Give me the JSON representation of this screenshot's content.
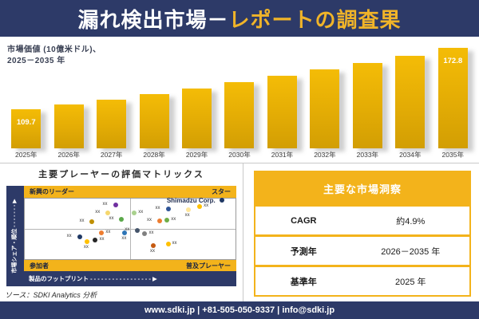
{
  "header": {
    "title_white": "漏れ検出市場－",
    "title_yellow": "レポートの調査果"
  },
  "bar_section": {
    "subtitle_line1": "市場価値 (10億米ドル)、",
    "subtitle_line2": "2025－2035 年"
  },
  "matrix_section": {
    "title": "主要プレーヤーの評価マトリックス",
    "quadrant_top_left": "新興のリーダー",
    "quadrant_top_right": "スター",
    "quadrant_bottom_left": "参加者",
    "quadrant_bottom_right": "普及プレーヤー",
    "y_axis_label": "市場シェア・順位",
    "x_axis_label": "製品のフットプリント",
    "featured_company": "Shimadzu Corp."
  },
  "insights": {
    "title": "主要な市場洞察",
    "rows": [
      {
        "label": "CAGR",
        "value": "約4.9%"
      },
      {
        "label": "予測年",
        "value": "2026－2035 年"
      },
      {
        "label": "基準年",
        "value": "2025 年"
      }
    ]
  },
  "source_note": "ソース：SDKI Analytics 分析",
  "footer": {
    "text": "www.sdki.jp | +81-505-050-9337 | info@sdki.jp"
  },
  "colors": {
    "navy": "#2d3a68",
    "gold_band": "#f3b31b",
    "title_yellow": "#f0b429",
    "bar_gold_top": "#f4bc06",
    "bar_gold_bottom": "#d29e04"
  },
  "chart_data": [
    {
      "type": "bar",
      "title": "市場価値 (10億米ドル)、2025－2035 年",
      "categories": [
        "2025年",
        "2026年",
        "2027年",
        "2028年",
        "2029年",
        "2030年",
        "2031年",
        "2032年",
        "2033年",
        "2034年",
        "2035年"
      ],
      "values": [
        109.7,
        114.8,
        120.1,
        125.7,
        131.5,
        137.6,
        144.0,
        150.7,
        157.7,
        165.0,
        172.8
      ],
      "value_labels": {
        "0": "109.7",
        "10": "172.8"
      },
      "xlabel": "",
      "ylabel": "市場価値 (10億米ドル)",
      "ylim": [
        70,
        180
      ],
      "grid": false,
      "legend": "none",
      "note": "only first and last bars carry data labels; intermediate values estimated from bar heights (~4.65% CAGR)"
    },
    {
      "type": "scatter",
      "title": "主要プレーヤーの評価マトリックス",
      "xlabel": "製品のフットプリント",
      "ylabel": "市場シェア・順位",
      "quadrants": [
        "新興のリーダー",
        "スター",
        "参加者",
        "普及プレーヤー"
      ],
      "points": [
        {
          "x": 43,
          "y": 10,
          "color": "#7030a0",
          "label": "xx",
          "side": "left"
        },
        {
          "x": 39.5,
          "y": 24,
          "color": "#f5d76e",
          "label": "xx",
          "side": "left"
        },
        {
          "x": 32,
          "y": 38.5,
          "color": "#bf8f00",
          "label": "xx",
          "side": "left"
        },
        {
          "x": 46,
          "y": 34.5,
          "color": "#5ba84a",
          "label": "xx",
          "side": "left"
        },
        {
          "x": 52,
          "y": 24,
          "color": "#a9d18e",
          "label": "xx",
          "side": "right"
        },
        {
          "x": 68,
          "y": 16.5,
          "color": "#2f5597",
          "label": "xx",
          "side": "left"
        },
        {
          "x": 77.5,
          "y": 18,
          "color": "#ffe699",
          "label": "xx",
          "side": "below"
        },
        {
          "x": 83,
          "y": 13,
          "color": "#ffc000",
          "label": "xx",
          "side": "right"
        },
        {
          "x": 64,
          "y": 37,
          "color": "#ed7d31",
          "label": "xx",
          "side": "left"
        },
        {
          "x": 67.5,
          "y": 36,
          "color": "#70ad47",
          "label": "xx",
          "side": "right"
        },
        {
          "x": 93.5,
          "y": 3,
          "color": "#1f3864",
          "label": "Shimadzu Corp.",
          "side": "left",
          "featured": true
        },
        {
          "x": 26,
          "y": 63,
          "color": "#1f3864",
          "label": "xx",
          "side": "left"
        },
        {
          "x": 36.5,
          "y": 56,
          "color": "#ed7d31",
          "label": "xx",
          "side": "right"
        },
        {
          "x": 29.5,
          "y": 70.5,
          "color": "#ffc000",
          "label": "xx",
          "side": "below"
        },
        {
          "x": 33.5,
          "y": 69,
          "color": "#262626",
          "label": "xx",
          "side": "right"
        },
        {
          "x": 47.5,
          "y": 56,
          "color": "#2e75b6",
          "label": "xx",
          "side": "below"
        },
        {
          "x": 53.5,
          "y": 52.5,
          "color": "#44546a",
          "label": "xx",
          "side": "left"
        },
        {
          "x": 57,
          "y": 58,
          "color": "#808080",
          "label": "xx",
          "side": "right"
        },
        {
          "x": 61,
          "y": 77,
          "color": "#c55a11",
          "label": "xx",
          "side": "below"
        },
        {
          "x": 68,
          "y": 74.5,
          "color": "#ffc000",
          "label": "xx",
          "side": "right"
        }
      ]
    },
    {
      "type": "table",
      "title": "主要な市場洞察",
      "rows": [
        [
          "CAGR",
          "約4.9%"
        ],
        [
          "予測年",
          "2026－2035 年"
        ],
        [
          "基準年",
          "2025 年"
        ]
      ]
    }
  ]
}
